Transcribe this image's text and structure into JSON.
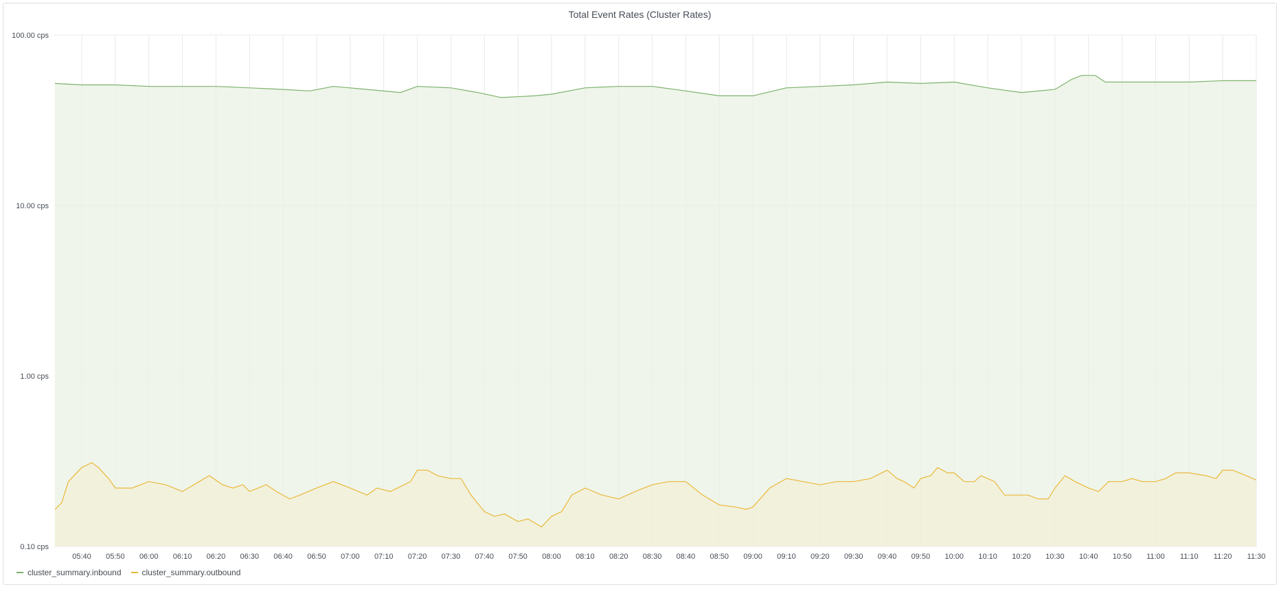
{
  "panel": {
    "title": "Total Event Rates (Cluster Rates)"
  },
  "chart_data": {
    "type": "line",
    "title": "Total Event Rates (Cluster Rates)",
    "y_scale": "log",
    "ylim": [
      0.1,
      100
    ],
    "y_ticks": [
      "0.10 cps",
      "1.00 cps",
      "10.00 cps",
      "100.00 cps"
    ],
    "y_tick_values": [
      0.1,
      1,
      10,
      100
    ],
    "x_range": [
      "05:32",
      "11:30"
    ],
    "x_ticks": [
      "05:40",
      "05:50",
      "06:00",
      "06:10",
      "06:20",
      "06:30",
      "06:40",
      "06:50",
      "07:00",
      "07:10",
      "07:20",
      "07:30",
      "07:40",
      "07:50",
      "08:00",
      "08:10",
      "08:20",
      "08:30",
      "08:40",
      "08:50",
      "09:00",
      "09:10",
      "09:20",
      "09:30",
      "09:40",
      "09:50",
      "10:00",
      "10:10",
      "10:20",
      "10:30",
      "10:40",
      "10:50",
      "11:00",
      "11:10",
      "11:20",
      "11:30"
    ],
    "grid": true,
    "legend_position": "bottom-left",
    "series": [
      {
        "name": "cluster_summary.inbound",
        "color": "#7eb26d",
        "fill": "#e9f2e3",
        "points": [
          [
            "05:32",
            52
          ],
          [
            "05:40",
            51
          ],
          [
            "05:50",
            51
          ],
          [
            "06:00",
            50
          ],
          [
            "06:10",
            50
          ],
          [
            "06:20",
            50
          ],
          [
            "06:30",
            49
          ],
          [
            "06:40",
            48
          ],
          [
            "06:48",
            47
          ],
          [
            "06:55",
            50
          ],
          [
            "07:05",
            48
          ],
          [
            "07:15",
            46
          ],
          [
            "07:20",
            50
          ],
          [
            "07:30",
            49
          ],
          [
            "07:38",
            46
          ],
          [
            "07:45",
            43
          ],
          [
            "07:55",
            44
          ],
          [
            "08:00",
            45
          ],
          [
            "08:10",
            49
          ],
          [
            "08:20",
            50
          ],
          [
            "08:30",
            50
          ],
          [
            "08:40",
            47
          ],
          [
            "08:50",
            44
          ],
          [
            "09:00",
            44
          ],
          [
            "09:10",
            49
          ],
          [
            "09:20",
            50
          ],
          [
            "09:30",
            51
          ],
          [
            "09:40",
            53
          ],
          [
            "09:50",
            52
          ],
          [
            "10:00",
            53
          ],
          [
            "10:10",
            49
          ],
          [
            "10:20",
            46
          ],
          [
            "10:30",
            48
          ],
          [
            "10:35",
            55
          ],
          [
            "10:38",
            58
          ],
          [
            "10:42",
            58
          ],
          [
            "10:45",
            53
          ],
          [
            "10:50",
            53
          ],
          [
            "11:00",
            53
          ],
          [
            "11:10",
            53
          ],
          [
            "11:20",
            54
          ],
          [
            "11:30",
            54
          ]
        ]
      },
      {
        "name": "cluster_summary.outbound",
        "color": "#eab839",
        "fill": "#f3efd7",
        "points": [
          [
            "05:32",
            0.165
          ],
          [
            "05:34",
            0.18
          ],
          [
            "05:36",
            0.24
          ],
          [
            "05:40",
            0.29
          ],
          [
            "05:43",
            0.31
          ],
          [
            "05:45",
            0.29
          ],
          [
            "05:48",
            0.25
          ],
          [
            "05:50",
            0.22
          ],
          [
            "05:55",
            0.22
          ],
          [
            "06:00",
            0.24
          ],
          [
            "06:05",
            0.23
          ],
          [
            "06:10",
            0.21
          ],
          [
            "06:15",
            0.24
          ],
          [
            "06:18",
            0.26
          ],
          [
            "06:22",
            0.23
          ],
          [
            "06:25",
            0.22
          ],
          [
            "06:28",
            0.23
          ],
          [
            "06:30",
            0.21
          ],
          [
            "06:35",
            0.23
          ],
          [
            "06:38",
            0.21
          ],
          [
            "06:42",
            0.19
          ],
          [
            "06:45",
            0.2
          ],
          [
            "06:50",
            0.22
          ],
          [
            "06:55",
            0.24
          ],
          [
            "07:00",
            0.22
          ],
          [
            "07:05",
            0.2
          ],
          [
            "07:08",
            0.22
          ],
          [
            "07:12",
            0.21
          ],
          [
            "07:18",
            0.24
          ],
          [
            "07:20",
            0.28
          ],
          [
            "07:23",
            0.28
          ],
          [
            "07:26",
            0.26
          ],
          [
            "07:30",
            0.25
          ],
          [
            "07:33",
            0.25
          ],
          [
            "07:36",
            0.2
          ],
          [
            "07:40",
            0.16
          ],
          [
            "07:43",
            0.15
          ],
          [
            "07:46",
            0.155
          ],
          [
            "07:50",
            0.14
          ],
          [
            "07:53",
            0.145
          ],
          [
            "07:57",
            0.13
          ],
          [
            "08:00",
            0.15
          ],
          [
            "08:03",
            0.16
          ],
          [
            "08:06",
            0.2
          ],
          [
            "08:10",
            0.22
          ],
          [
            "08:15",
            0.2
          ],
          [
            "08:20",
            0.19
          ],
          [
            "08:25",
            0.21
          ],
          [
            "08:30",
            0.23
          ],
          [
            "08:35",
            0.24
          ],
          [
            "08:40",
            0.24
          ],
          [
            "08:45",
            0.2
          ],
          [
            "08:50",
            0.175
          ],
          [
            "08:55",
            0.17
          ],
          [
            "08:58",
            0.165
          ],
          [
            "09:00",
            0.17
          ],
          [
            "09:05",
            0.22
          ],
          [
            "09:10",
            0.25
          ],
          [
            "09:15",
            0.24
          ],
          [
            "09:20",
            0.23
          ],
          [
            "09:25",
            0.24
          ],
          [
            "09:30",
            0.24
          ],
          [
            "09:35",
            0.25
          ],
          [
            "09:40",
            0.28
          ],
          [
            "09:43",
            0.25
          ],
          [
            "09:45",
            0.24
          ],
          [
            "09:48",
            0.22
          ],
          [
            "09:50",
            0.25
          ],
          [
            "09:53",
            0.26
          ],
          [
            "09:55",
            0.29
          ],
          [
            "09:58",
            0.27
          ],
          [
            "10:00",
            0.27
          ],
          [
            "10:03",
            0.24
          ],
          [
            "10:06",
            0.24
          ],
          [
            "10:08",
            0.26
          ],
          [
            "10:12",
            0.24
          ],
          [
            "10:15",
            0.2
          ],
          [
            "10:18",
            0.2
          ],
          [
            "10:22",
            0.2
          ],
          [
            "10:25",
            0.19
          ],
          [
            "10:28",
            0.19
          ],
          [
            "10:30",
            0.22
          ],
          [
            "10:33",
            0.26
          ],
          [
            "10:36",
            0.24
          ],
          [
            "10:40",
            0.22
          ],
          [
            "10:43",
            0.21
          ],
          [
            "10:46",
            0.24
          ],
          [
            "10:50",
            0.24
          ],
          [
            "10:53",
            0.25
          ],
          [
            "10:56",
            0.24
          ],
          [
            "11:00",
            0.24
          ],
          [
            "11:03",
            0.25
          ],
          [
            "11:06",
            0.27
          ],
          [
            "11:10",
            0.27
          ],
          [
            "11:15",
            0.26
          ],
          [
            "11:18",
            0.25
          ],
          [
            "11:20",
            0.28
          ],
          [
            "11:23",
            0.28
          ],
          [
            "11:27",
            0.26
          ],
          [
            "11:30",
            0.245
          ]
        ]
      }
    ]
  }
}
